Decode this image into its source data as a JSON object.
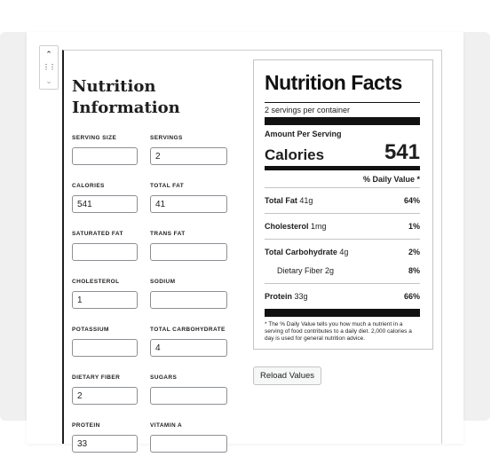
{
  "block": {
    "title": "Nutrition Information",
    "mover": {
      "up_icon": "chevron-up-icon",
      "drag_icon": "drag-handle-icon",
      "down_icon": "chevron-down-icon"
    }
  },
  "fields": [
    {
      "id": "serving-size",
      "label": "SERVING SIZE",
      "value": ""
    },
    {
      "id": "servings",
      "label": "SERVINGS",
      "value": "2"
    },
    {
      "id": "calories",
      "label": "CALORIES",
      "value": "541"
    },
    {
      "id": "total-fat",
      "label": "TOTAL FAT",
      "value": "41"
    },
    {
      "id": "saturated-fat",
      "label": "SATURATED FAT",
      "value": ""
    },
    {
      "id": "trans-fat",
      "label": "TRANS FAT",
      "value": ""
    },
    {
      "id": "cholesterol",
      "label": "CHOLESTEROL",
      "value": "1"
    },
    {
      "id": "sodium",
      "label": "SODIUM",
      "value": ""
    },
    {
      "id": "potassium",
      "label": "POTASSIUM",
      "value": ""
    },
    {
      "id": "total-carbohydrate",
      "label": "TOTAL CARBOHYDRATE",
      "value": "4"
    },
    {
      "id": "dietary-fiber",
      "label": "DIETARY FIBER",
      "value": "2"
    },
    {
      "id": "sugars",
      "label": "SUGARS",
      "value": ""
    },
    {
      "id": "protein",
      "label": "PROTEIN",
      "value": "33"
    },
    {
      "id": "vitamin-a",
      "label": "VITAMIN A",
      "value": ""
    }
  ],
  "label": {
    "title": "Nutrition Facts",
    "servings_text": "2 servings per container",
    "amount_per_serving": "Amount Per Serving",
    "calories_label": "Calories",
    "calories_value": "541",
    "daily_value_header": "% Daily Value *",
    "rows": [
      {
        "name": "Total Fat",
        "amount": "41g",
        "pct": "64%"
      },
      {
        "name": "Cholesterol",
        "amount": "1mg",
        "pct": "1%"
      },
      {
        "name": "Total Carbohydrate",
        "amount": "4g",
        "pct": "2%"
      },
      {
        "name": "Dietary Fiber",
        "amount": "2g",
        "pct": "8%"
      },
      {
        "name": "Protein",
        "amount": "33g",
        "pct": "66%"
      }
    ],
    "footnote": "* The % Daily Value tells you how much a nutrient in a serving of food contributes to a daily diet. 2,000 calories a day is used for general nutrition advice."
  },
  "actions": {
    "reload_label": "Reload Values"
  }
}
